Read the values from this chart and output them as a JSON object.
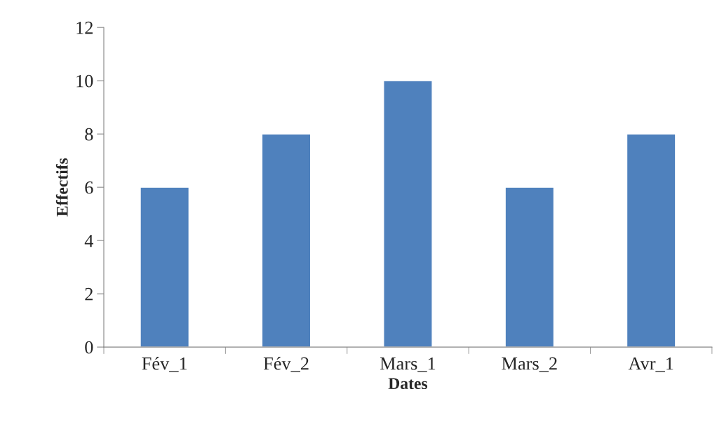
{
  "chart_data": {
    "type": "bar",
    "xlabel": "Dates",
    "ylabel": "Effectifs",
    "categories": [
      "Fév_1",
      "Fév_2",
      "Mars_1",
      "Mars_2",
      "Avr_1"
    ],
    "values": [
      6,
      8,
      10,
      6,
      8
    ],
    "color": "#4f81bd",
    "ylim": [
      0,
      12
    ],
    "yticks": [
      0,
      2,
      4,
      6,
      8,
      10,
      12
    ],
    "grid": false,
    "legend": false
  }
}
